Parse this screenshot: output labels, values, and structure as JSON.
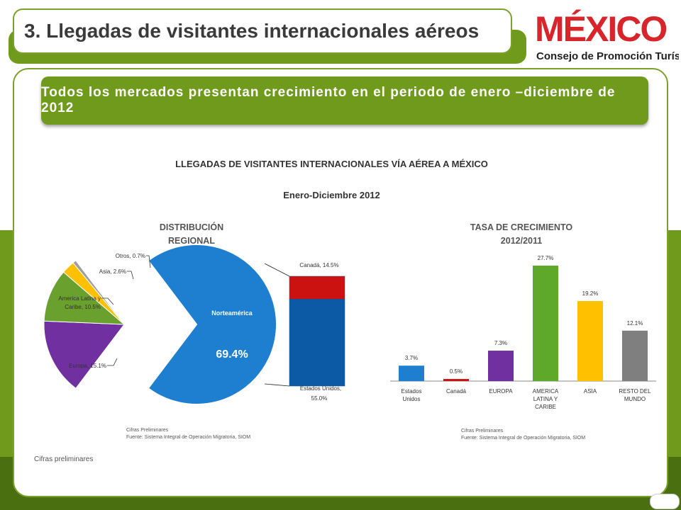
{
  "header": {
    "title": "3. Llegadas de visitantes internacionales aéreos",
    "logo_text": "MÉXICO",
    "logo_subtitle": "Consejo de Promoción Turística"
  },
  "banner": {
    "text": "Todos los mercados presentan crecimiento en el periodo de enero –diciembre de 2012"
  },
  "chart_title": "LLEGADAS DE VISITANTES INTERNACIONALES VÍA AÉREA A MÉXICO",
  "chart_period": "Enero-Diciembre 2012",
  "pie_section": {
    "title_line1": "DISTRIBUCIÓN",
    "title_line2": "REGIONAL",
    "note_line1": "Cifras Preliminares",
    "note_line2": "Fuente: Sistema Integral de Operación Migratoria, SIOM"
  },
  "bar_section": {
    "title_line1": "TASA DE CRECIMIENTO",
    "title_line2": "2012/2011",
    "note_line1": "Cifras Preliminares",
    "note_line2": "Fuente: Sistema Integral de Operación Migratoria, SIOM"
  },
  "footer_note": "Cifras preliminares",
  "colors": {
    "brand_green": "#6f9a1c",
    "dark_green": "#4a6f10",
    "blue": "#1e7fd0",
    "dark_blue": "#0c5aa6",
    "red": "#cc1111",
    "purple": "#7030a0",
    "green": "#5ea82a",
    "yellow": "#ffc000",
    "grey": "#7f7f7f"
  },
  "chart_data": [
    {
      "type": "pie",
      "slices": [
        {
          "label": "Norteamérica",
          "value": 69.4,
          "value_label": "69.4%",
          "color": "#1e7fd0"
        },
        {
          "label": "Europa",
          "value": 15.1,
          "value_label": "15.1%",
          "label_line1": "Europa, 15.1%",
          "color": "#7030a0"
        },
        {
          "label": "America Latina y Caribe",
          "value": 10.5,
          "value_label": "10.5%",
          "label_line1": "America Latina y",
          "label_line2": "Caribe, 10.5%",
          "color": "#6aa02e"
        },
        {
          "label": "Asia",
          "value": 2.6,
          "value_label": "2.6%",
          "label_line1": "Asia, 2.6%",
          "color": "#ffc000"
        },
        {
          "label": "Otros",
          "value": 0.7,
          "value_label": "0.7%",
          "label_line1": "Otros, 0.7%",
          "color": "#9e9e9e"
        }
      ],
      "breakdown": {
        "of": "Norteamérica",
        "items": [
          {
            "label": "Estados Unidos",
            "value": 55.0,
            "label_line1": "Estados Unidos,",
            "label_line2": "55.0%",
            "color": "#0c5aa6"
          },
          {
            "label": "Canadá",
            "value": 14.5,
            "label_line1": "Canadá, 14.5%",
            "color": "#cc1111"
          }
        ]
      }
    },
    {
      "type": "bar",
      "categories": [
        "Estados Unidos",
        "Canadá",
        "EUROPA",
        "AMERICA LATINA Y CARIBE",
        "ASIA",
        "RESTO DEL MUNDO"
      ],
      "category_lines": [
        [
          "Estados",
          "Unidos"
        ],
        [
          "Canadá"
        ],
        [
          "EUROPA"
        ],
        [
          "AMERICA",
          "LATINA Y",
          "CARIBE"
        ],
        [
          "ASIA"
        ],
        [
          "RESTO DEL",
          "MUNDO"
        ]
      ],
      "values": [
        3.7,
        0.5,
        7.3,
        27.7,
        19.2,
        12.1
      ],
      "value_labels": [
        "3.7%",
        "0.5%",
        "7.3%",
        "27.7%",
        "19.2%",
        "12.1%"
      ],
      "colors": [
        "#1e7fd0",
        "#cc1111",
        "#7030a0",
        "#5ea82a",
        "#ffc000",
        "#7f7f7f"
      ],
      "ylim": [
        0,
        27.7
      ]
    }
  ]
}
